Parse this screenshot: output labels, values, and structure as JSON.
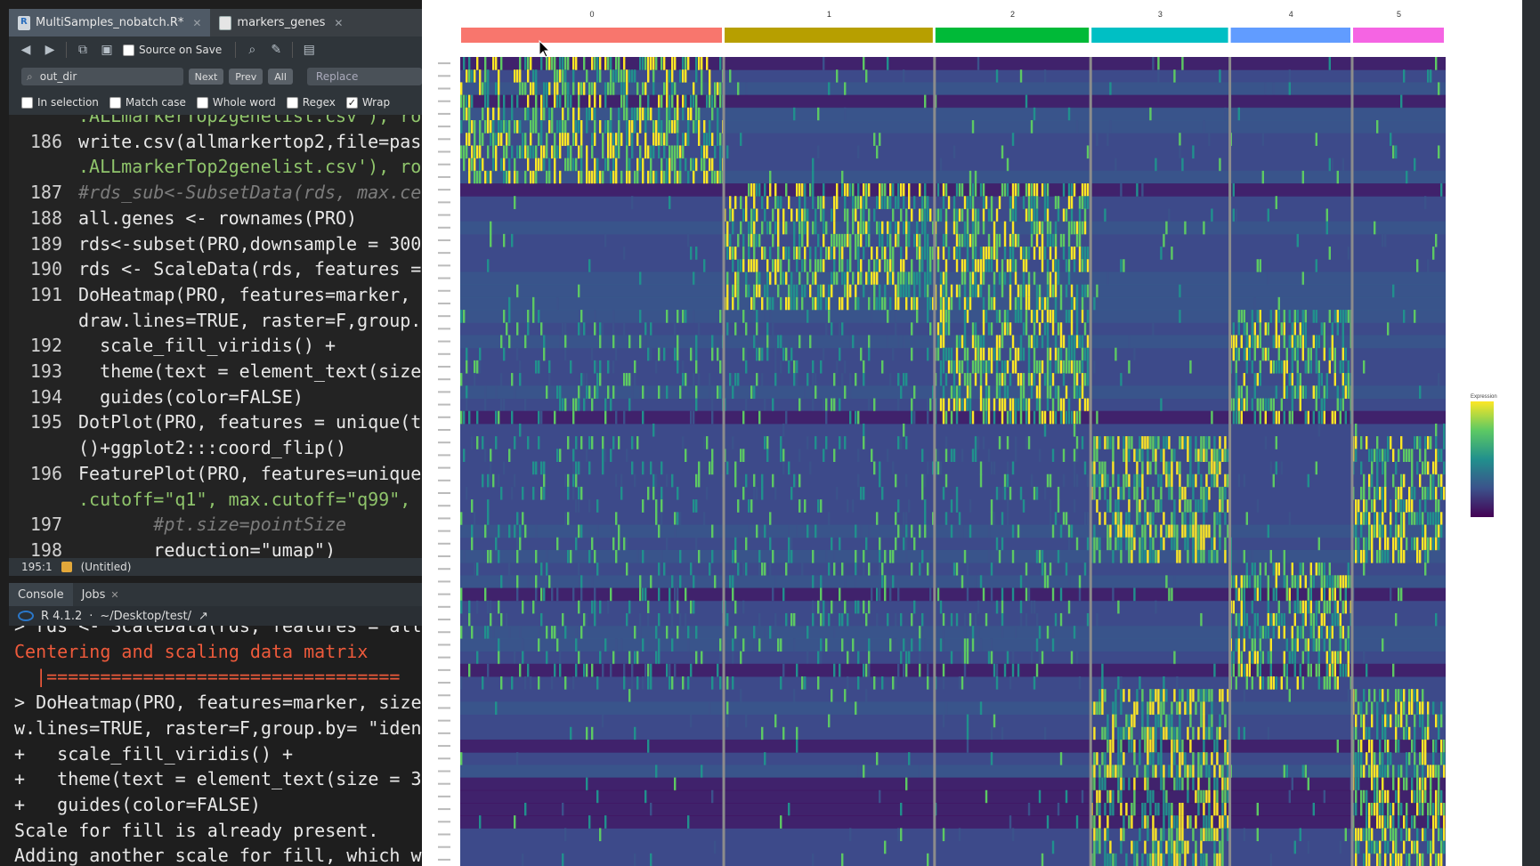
{
  "tabs": [
    {
      "label": "MultiSamples_nobatch.R*",
      "icon": "r-file-icon"
    },
    {
      "label": "markers_genes",
      "icon": "table-icon"
    }
  ],
  "toolbar": {
    "source_on_save": "Source on Save"
  },
  "find": {
    "query": "out_dir",
    "next": "Next",
    "prev": "Prev",
    "all": "All",
    "replace_placeholder": "Replace",
    "options": [
      {
        "label": "In selection",
        "checked": false
      },
      {
        "label": "Match case",
        "checked": false
      },
      {
        "label": "Whole word",
        "checked": false
      },
      {
        "label": "Regex",
        "checked": false
      },
      {
        "label": "Wrap",
        "checked": true
      }
    ]
  },
  "editor": {
    "lines": [
      {
        "num": "",
        "text": ".ALLmarkerTop2genelist.csv'), ro"
      },
      {
        "num": "186",
        "text": "write.csv(allmarkertop2,file=pas"
      },
      {
        "num": "",
        "text": ".ALLmarkerTop2genelist.csv'), ro"
      },
      {
        "num": "187",
        "text": "#rds_sub<-SubsetData(rds, max.ce"
      },
      {
        "num": "188",
        "text": "all.genes <- rownames(PRO)"
      },
      {
        "num": "189",
        "text": "rds<-subset(PRO,downsample = 300"
      },
      {
        "num": "190",
        "text": "rds <- ScaleData(rds, features ="
      },
      {
        "num": "191",
        "text": "DoHeatmap(PRO, features=marker, "
      },
      {
        "num": "",
        "text": "draw.lines=TRUE, raster=F,group."
      },
      {
        "num": "192",
        "text": "  scale_fill_viridis() +"
      },
      {
        "num": "193",
        "text": "  theme(text = element_text(size"
      },
      {
        "num": "194",
        "text": "  guides(color=FALSE)"
      },
      {
        "num": "195",
        "text": "DotPlot(PRO, features = unique(t"
      },
      {
        "num": "",
        "text": "()+ggplot2:::coord_flip()"
      },
      {
        "num": "196",
        "text": "FeaturePlot(PRO, features=unique"
      },
      {
        "num": "",
        "text": ".cutoff=\"q1\", max.cutoff=\"q99\","
      },
      {
        "num": "197",
        "text": "       #pt.size=pointSize"
      },
      {
        "num": "198",
        "text": "       reduction=\"umap\")"
      }
    ]
  },
  "status": {
    "position": "195:1",
    "scope": "(Untitled)"
  },
  "console": {
    "tabs": [
      "Console",
      "Jobs"
    ],
    "r_version": "R 4.1.2",
    "path": "~/Desktop/test/",
    "lines": [
      "> rds <- ScaleData(rds, features = all",
      "Centering and scaling data matrix",
      "  |=================================",
      "> DoHeatmap(PRO, features=marker, size",
      "w.lines=TRUE, raster=F,group.by= \"iden",
      "+   scale_fill_viridis() +",
      "+   theme(text = element_text(size = 3",
      "+   guides(color=FALSE)",
      "Scale for fill is already present.",
      "Adding another scale for fill, which w"
    ]
  },
  "heatmap": {
    "clusters": [
      {
        "label": "0",
        "color": "#f8766d",
        "weight": 0.265
      },
      {
        "label": "1",
        "color": "#b79f00",
        "weight": 0.212
      },
      {
        "label": "2",
        "color": "#00ba38",
        "weight": 0.157
      },
      {
        "label": "3",
        "color": "#00bfc4",
        "weight": 0.14
      },
      {
        "label": "4",
        "color": "#619cff",
        "weight": 0.123
      },
      {
        "label": "5",
        "color": "#f564e3",
        "weight": 0.094
      }
    ],
    "legend_title": "Expression",
    "palette": [
      "#440154",
      "#3b528b",
      "#21908d",
      "#5dc963",
      "#fde725"
    ],
    "background": "#3d4a8a"
  }
}
